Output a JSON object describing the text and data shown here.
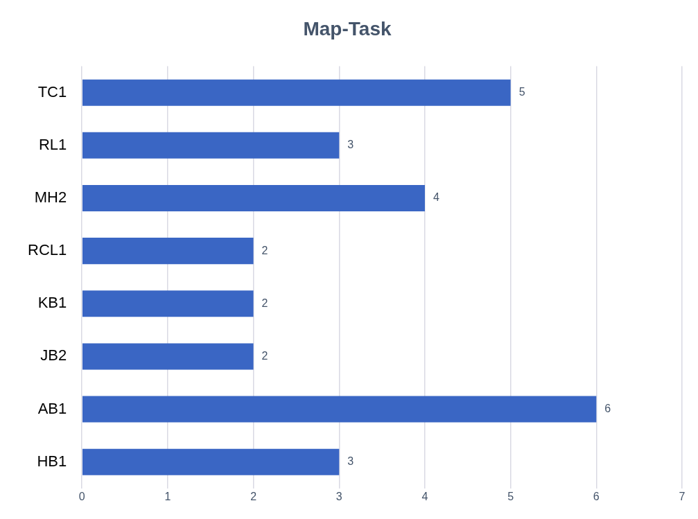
{
  "chart_data": {
    "type": "bar",
    "orientation": "horizontal",
    "title": "Map-Task",
    "categories": [
      "TC1",
      "RL1",
      "MH2",
      "RCL1",
      "KB1",
      "JB2",
      "AB1",
      "HB1"
    ],
    "values": [
      5,
      3,
      4,
      2,
      2,
      2,
      6,
      3
    ],
    "color": "#3a66c4",
    "xlim": [
      0,
      7
    ],
    "xticks": [
      0,
      1,
      2,
      3,
      4,
      5,
      6,
      7
    ],
    "grid": "x",
    "data_labels": true,
    "legend": false
  }
}
